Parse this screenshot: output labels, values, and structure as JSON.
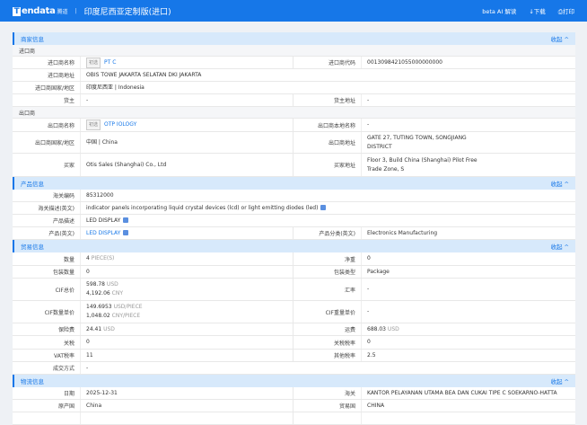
{
  "header": {
    "logo_letter": "T",
    "logo_rest": "endata",
    "logo_sub": "腾道",
    "divider": "|",
    "title": "印度尼西亚定制版(进口)",
    "ai_label": "beta AI 解读",
    "download_label": "↓下载",
    "print_label": "⎙打印"
  },
  "accent": "#1677e8",
  "sections": [
    {
      "title": "商家信息",
      "collapse": "收起 ^",
      "blocks": [
        {
          "sub": "进口商",
          "rows": [
            {
              "h": 14,
              "cells": [
                {
                  "label": "进口商名称",
                  "tag": "初选",
                  "value": "PT C",
                  "link": true
                },
                {
                  "label": "进口商代码",
                  "value": "0013098421055000000000"
                }
              ]
            },
            {
              "h": 14,
              "cells": [
                {
                  "label": "进口商地址",
                  "value": "OBIS TOWE                                                              JAKARTA SELATAN DKI JAKARTA",
                  "full": true
                }
              ]
            },
            {
              "h": 14,
              "cells": [
                {
                  "label": "进口商国家/地区",
                  "value": "印度尼西亚 | Indonesia",
                  "full": true
                }
              ]
            },
            {
              "h": 14,
              "cells": [
                {
                  "label": "货主",
                  "value": "-"
                },
                {
                  "label": "货主地址",
                  "value": "-"
                }
              ]
            }
          ]
        },
        {
          "sub": "出口商",
          "rows": [
            {
              "h": 15,
              "cells": [
                {
                  "label": "出口商名称",
                  "tag": "初选",
                  "value": "OTP                              IOLOGY",
                  "link": true
                },
                {
                  "label": "出口商本地名称",
                  "value": "-"
                }
              ]
            },
            {
              "h": 24,
              "cells": [
                {
                  "label": "出口商国家/地区",
                  "value": "中国 | China"
                },
                {
                  "label": "出口商地址",
                  "value": "GATE 27,                                  TUTING TOWN, SONGJIANG",
                  "value2": "DISTRICT"
                }
              ]
            },
            {
              "h": 26,
              "cells": [
                {
                  "label": "买家",
                  "value": "Otis Sales                      (Shanghai) Co., Ltd"
                },
                {
                  "label": "买家地址",
                  "value": "Floor 3, Build                                China (Shanghai) Pilot Free",
                  "value2": "Trade Zone, S"
                }
              ]
            }
          ]
        }
      ]
    },
    {
      "title": "产品信息",
      "collapse": "收起 ^",
      "blocks": [
        {
          "rows": [
            {
              "h": 14,
              "cells": [
                {
                  "label": "海关编码",
                  "value": "85312000",
                  "full": true
                }
              ]
            },
            {
              "h": 14,
              "cells": [
                {
                  "label": "海关描述(英文)",
                  "value": "indicator panels incorporating liquid crystal devices (lcd) or light emitting diodes (led)",
                  "icon": true,
                  "full": true
                }
              ]
            },
            {
              "h": 14,
              "cells": [
                {
                  "label": "产品描述",
                  "value": "LED DISPLAY",
                  "icon": true,
                  "full": true
                }
              ]
            },
            {
              "h": 14,
              "cells": [
                {
                  "label": "产品(英文)",
                  "value": "LED DISPLAY",
                  "link": true,
                  "icon": true
                },
                {
                  "label": "产品分类(英文)",
                  "value": "Electronics Manufacturing"
                }
              ]
            }
          ]
        }
      ]
    },
    {
      "title": "贸易信息",
      "collapse": "收起 ^",
      "blocks": [
        {
          "rows": [
            {
              "h": 15,
              "cells": [
                {
                  "label": "数量",
                  "value": "4",
                  "unit": "PIECE(S)"
                },
                {
                  "label": "净重",
                  "value": "0"
                }
              ]
            },
            {
              "h": 14,
              "cells": [
                {
                  "label": "包装数量",
                  "value": "0"
                },
                {
                  "label": "包装类型",
                  "value": "Package"
                }
              ]
            },
            {
              "h": 25,
              "cells": [
                {
                  "label": "CIF总价",
                  "value": "598.78",
                  "unit": "USD",
                  "value2": "4,192.06",
                  "unit2": "CNY"
                },
                {
                  "label": "汇率",
                  "value": "-"
                }
              ]
            },
            {
              "h": 25,
              "cells": [
                {
                  "label": "CIF数量单价",
                  "value": "149.6953",
                  "unit": "USD/PIECE",
                  "value2": "1,048.02",
                  "unit2": "CNY/PIECE"
                },
                {
                  "label": "CIF重量单价",
                  "value": "-"
                }
              ]
            },
            {
              "h": 14,
              "cells": [
                {
                  "label": "保险费",
                  "value": "24.41",
                  "unit": "USD"
                },
                {
                  "label": "运费",
                  "value": "688.03",
                  "unit": "USD"
                }
              ]
            },
            {
              "h": 15,
              "cells": [
                {
                  "label": "关税",
                  "value": "0"
                },
                {
                  "label": "关税税率",
                  "value": "0"
                }
              ]
            },
            {
              "h": 14,
              "cells": [
                {
                  "label": "VAT税率",
                  "value": "11"
                },
                {
                  "label": "其他税率",
                  "value": "2.5"
                }
              ]
            },
            {
              "h": 14,
              "cells": [
                {
                  "label": "成交方式",
                  "value": "-",
                  "full": true
                }
              ]
            }
          ]
        }
      ]
    },
    {
      "title": "物流信息",
      "collapse": "收起 ^",
      "blocks": [
        {
          "rows": [
            {
              "h": 14,
              "cells": [
                {
                  "label": "日期",
                  "value": "2025-12-31"
                },
                {
                  "label": "海关",
                  "value": "KANTOR PELAYANAN UTAMA BEA DAN CUKAI TIPE C SOEKARNO-HATTA"
                }
              ]
            },
            {
              "h": 14,
              "cells": [
                {
                  "label": "原产国",
                  "value": "China"
                },
                {
                  "label": "贸易国",
                  "value": "CHINA"
                }
              ]
            },
            {
              "h": 14,
              "cells": [
                {
                  "label": "",
                  "value": ""
                },
                {
                  "label": "",
                  "value": ""
                }
              ]
            }
          ]
        }
      ]
    }
  ]
}
